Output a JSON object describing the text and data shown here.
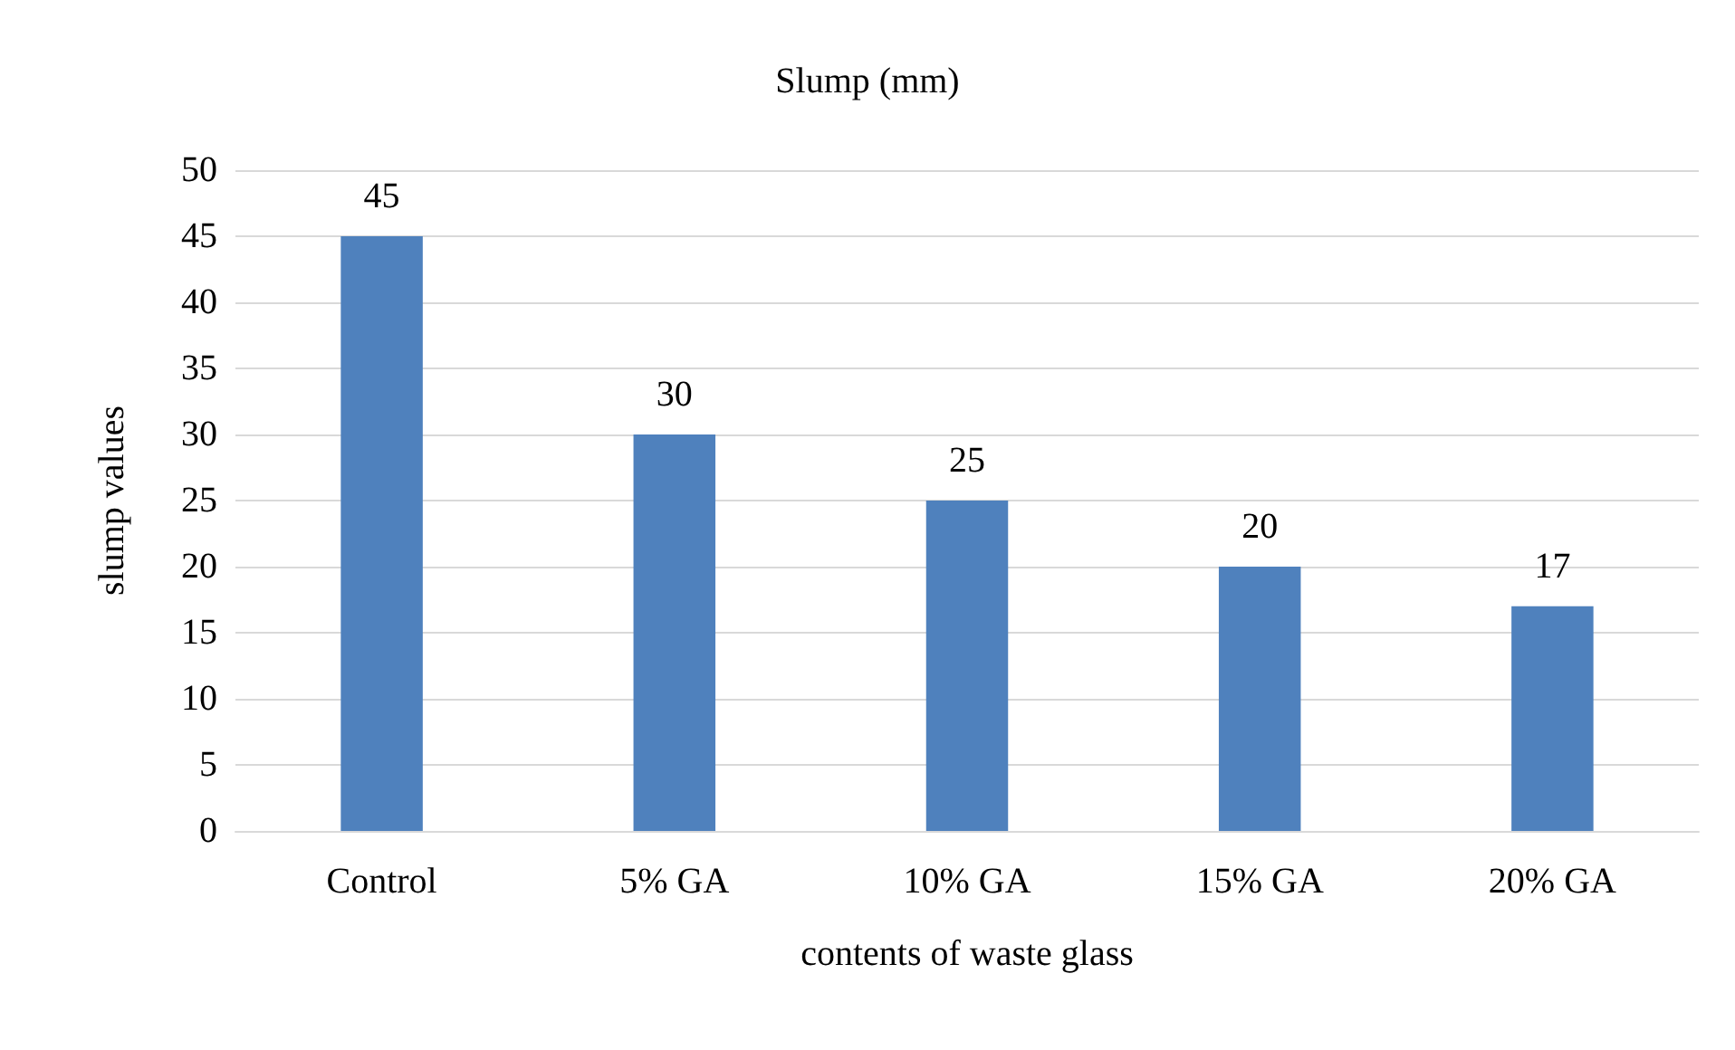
{
  "chart_data": {
    "type": "bar",
    "title": "Slump (mm)",
    "xlabel": "contents of waste glass",
    "ylabel": "slump values",
    "categories": [
      "Control",
      "5% GA",
      "10% GA",
      "15% GA",
      "20% GA"
    ],
    "values": [
      45,
      30,
      25,
      20,
      17
    ],
    "color": "#4f81bd",
    "ylim": [
      0,
      50
    ],
    "yticks": [
      0,
      5,
      10,
      15,
      20,
      25,
      30,
      35,
      40,
      45,
      50
    ],
    "grid": "y",
    "data_labels": true
  }
}
